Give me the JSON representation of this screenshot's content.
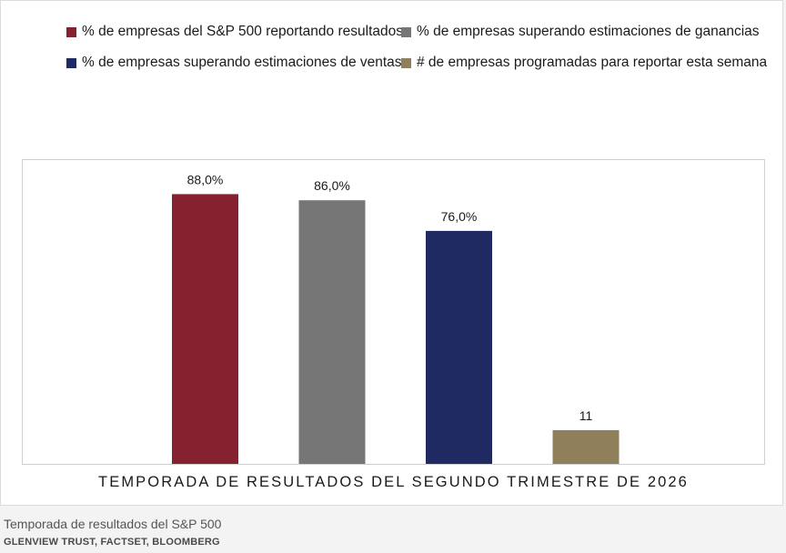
{
  "chart_data": {
    "type": "bar",
    "title": "",
    "xlabel": "TEMPORADA DE RESULTADOS DEL SEGUNDO TRIMESTRE DE 2026",
    "ylabel": "",
    "ylim": [
      0,
      100
    ],
    "grid": false,
    "legend_position": "top",
    "series": [
      {
        "name": "% de empresas del S&P 500 reportando resultados",
        "value": 88,
        "label": "88,0%",
        "color": "#862130"
      },
      {
        "name": "% de empresas superando estimaciones de ganancias",
        "value": 86,
        "label": "86,0%",
        "color": "#767676"
      },
      {
        "name": "% de empresas superando estimaciones de ventas",
        "value": 76,
        "label": "76,0%",
        "color": "#1f2a63"
      },
      {
        "name": "# de empresas programadas para reportar esta semana",
        "value": 11,
        "label": "11",
        "color": "#8f7f5a"
      }
    ]
  },
  "caption": {
    "title": "Temporada de resultados del S&P 500",
    "source": "GLENVIEW TRUST, FACTSET, BLOOMBERG"
  }
}
